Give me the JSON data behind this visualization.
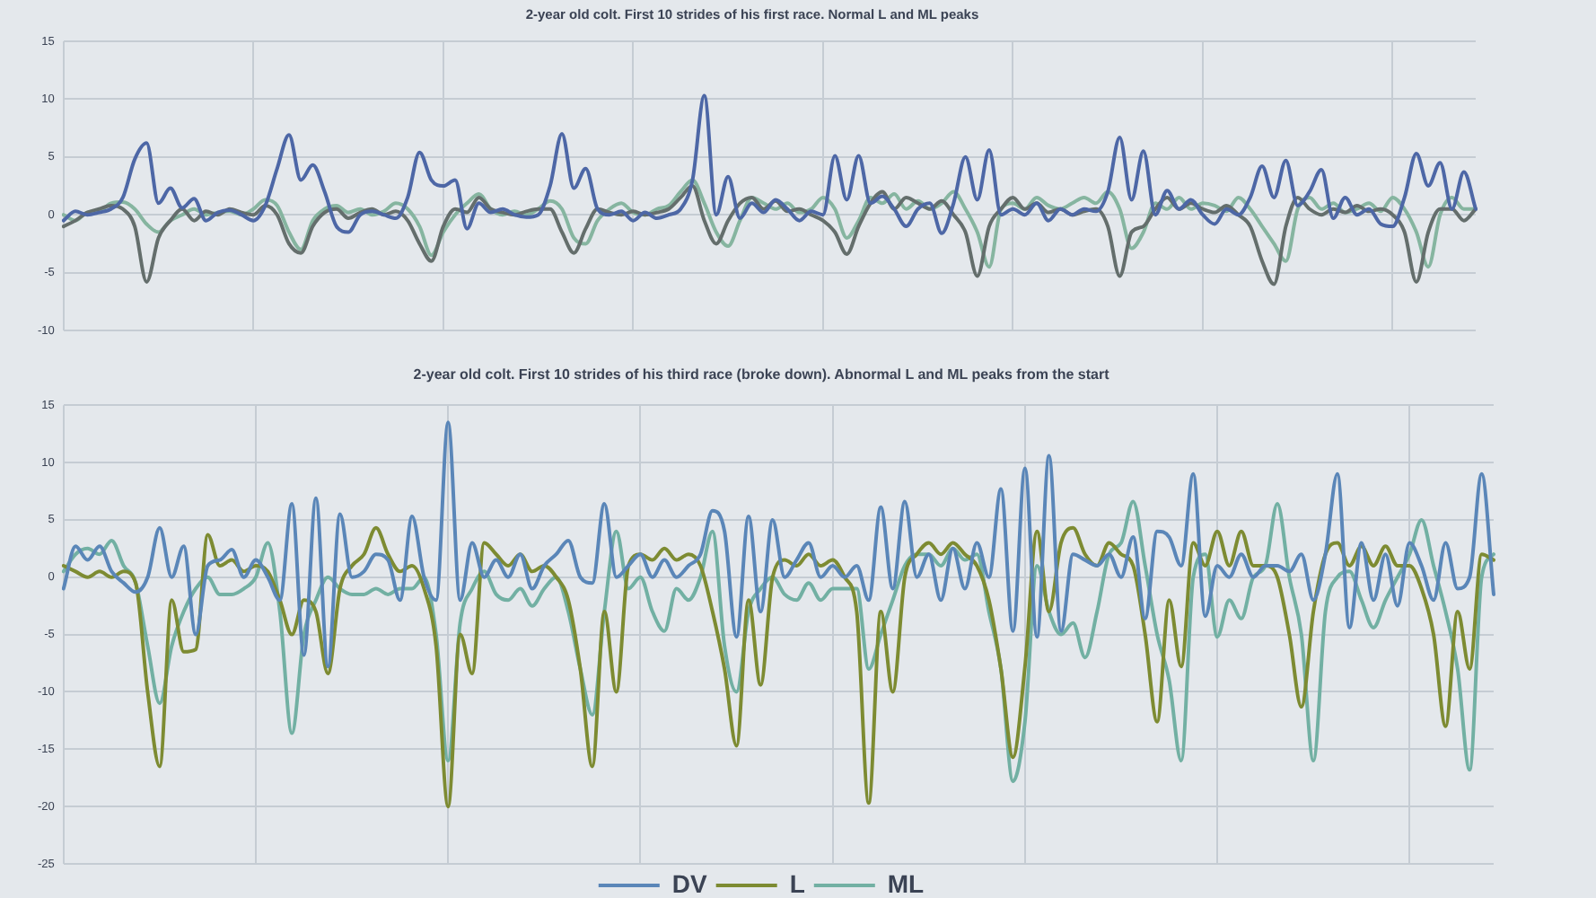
{
  "chart_data": [
    {
      "type": "line",
      "title": "2-year old colt. First 10 strides of his first race. Normal L and ML peaks",
      "categories": [
        null,
        null,
        null,
        null,
        null,
        null,
        null,
        null,
        null,
        null,
        null,
        null,
        null,
        null,
        null,
        null,
        null,
        null,
        null,
        null,
        null,
        null,
        null,
        null,
        null,
        null,
        null,
        null,
        null,
        null,
        null,
        null,
        null,
        null,
        null,
        null,
        null,
        null,
        null,
        null,
        null,
        null,
        null,
        null,
        null,
        null,
        null,
        null,
        null,
        null,
        null,
        null,
        null,
        null,
        null,
        null,
        null,
        null,
        null,
        null,
        null,
        null,
        null,
        null,
        null,
        null,
        null,
        null,
        null,
        null,
        null,
        null,
        null,
        null,
        null,
        null,
        null,
        null,
        null,
        null,
        null,
        null,
        null,
        null,
        null,
        null,
        null,
        null,
        null,
        null,
        null,
        null,
        null,
        null,
        null,
        null,
        null,
        null,
        null,
        null,
        null,
        null,
        null,
        null,
        null,
        null,
        null,
        null,
        null,
        null,
        null,
        null,
        null,
        null,
        null,
        null,
        null,
        null,
        null,
        null
      ],
      "series": [
        {
          "color": "#4d67a6",
          "values": [
            -0.5,
            0.3,
            0,
            0.2,
            0.5,
            1.5,
            4.8,
            6.2,
            1,
            2.3,
            0.6,
            1.4,
            -0.5,
            0.2,
            0.4,
            0,
            -0.5,
            0.8,
            4,
            6.9,
            3,
            4.3,
            2,
            -1,
            -1.5,
            0,
            0.3,
            0,
            -0.3,
            1.5,
            5.4,
            3,
            2.5,
            3,
            -1.2,
            1,
            0.2,
            0.5,
            0,
            -0.2,
            0,
            2.5,
            7,
            2.3,
            4,
            0.5,
            0,
            0.3,
            -0.5,
            0.2,
            -0.3,
            0,
            0.5,
            3,
            10.3,
            0,
            3.3,
            -0.3,
            1,
            0.2,
            1.3,
            0.5,
            -0.5,
            0.3,
            0,
            5.1,
            1.3,
            5.1,
            1,
            1.6,
            0.5,
            -1,
            0.5,
            1,
            -1.6,
            1,
            5,
            1.3,
            5.6,
            0,
            0.5,
            0,
            1,
            -0.5,
            0.5,
            0,
            0.5,
            0.3,
            2,
            6.7,
            1.3,
            5.5,
            0,
            2.1,
            0.5,
            1.3,
            0,
            -0.8,
            0.5,
            0,
            1.5,
            4.2,
            1.5,
            4.7,
            0.8,
            2,
            3.9,
            -0.3,
            1.5,
            0,
            0.5,
            -0.8,
            -1,
            1.5,
            5.3,
            2.5,
            4.5,
            0.5,
            3.7,
            0.5
          ]
        },
        {
          "color": "#646e6c",
          "values": [
            -1,
            -0.5,
            0.2,
            0.5,
            0.8,
            0.5,
            -1,
            -5.8,
            -2,
            -0.5,
            0.5,
            -0.5,
            0.3,
            0,
            0.5,
            0.2,
            0,
            0.8,
            0,
            -2.5,
            -3.3,
            -1,
            0.2,
            0.5,
            -0.3,
            0.2,
            0.5,
            0,
            0.3,
            -0.5,
            -2.5,
            -4,
            -1,
            0.5,
            0.2,
            1.5,
            0.5,
            0.2,
            0,
            0.3,
            0.5,
            0.5,
            -1.5,
            -3.3,
            -1.2,
            0.5,
            0.2,
            0,
            0.3,
            0,
            0.2,
            0.5,
            1.5,
            2.5,
            -0.5,
            -2.5,
            -0.5,
            1,
            1.5,
            0.5,
            1.2,
            0.3,
            0.5,
            0,
            -0.5,
            -1.5,
            -3.4,
            -1,
            1,
            2,
            0.5,
            1.5,
            1,
            0.5,
            1.2,
            0,
            -1.5,
            -5.3,
            -1,
            0.5,
            1.5,
            0.5,
            1,
            0.2,
            0.5,
            0,
            0.3,
            0.5,
            -1,
            -5.3,
            -1.5,
            -1,
            0.5,
            1.5,
            0.5,
            1,
            0.5,
            0.2,
            0.8,
            0,
            -1,
            -4,
            -6,
            -1,
            1.5,
            0.5,
            0,
            0.5,
            0.2,
            0.8,
            0.3,
            0.5,
            0,
            -1.5,
            -5.8,
            -1.5,
            0.5,
            0.5,
            -0.5,
            0.5
          ]
        },
        {
          "color": "#86b5a0",
          "values": [
            0,
            -0.5,
            0.2,
            0.3,
            1,
            1.1,
            0.5,
            -0.8,
            -1.5,
            -0.5,
            0,
            0.5,
            0,
            0.2,
            0.3,
            0,
            0.5,
            1.3,
            0.8,
            -1.5,
            -3,
            -0.5,
            0.5,
            0.8,
            0.2,
            0.5,
            0,
            0.3,
            1,
            0.5,
            -1,
            -3.5,
            -1.5,
            0,
            1,
            1.8,
            0.5,
            0,
            0.3,
            0,
            0.5,
            1.2,
            0.5,
            -2,
            -2.5,
            -0.5,
            0.5,
            1,
            0.2,
            0,
            0.5,
            0.8,
            2,
            3,
            1,
            -1.5,
            -2.7,
            -0.5,
            1.5,
            1,
            0.5,
            1,
            0.2,
            0.5,
            1.5,
            0.5,
            -2,
            -0.5,
            1.5,
            1,
            1.8,
            0.5,
            1.2,
            0.5,
            1,
            2,
            0.5,
            -1.5,
            -4.5,
            0.5,
            1,
            0.5,
            1.5,
            0.8,
            0.5,
            1,
            1.5,
            1,
            2,
            0.5,
            -2.9,
            -1.5,
            1,
            0.5,
            1.5,
            0.5,
            1,
            0.8,
            0.3,
            1.5,
            0.5,
            -1,
            -2.5,
            -4,
            0.5,
            1.5,
            0.5,
            1,
            0.2,
            0.5,
            1,
            0.3,
            1.5,
            0.5,
            -1.5,
            -4.5,
            0,
            1.5,
            0.5,
            0.5
          ]
        }
      ],
      "ylim": [
        -10,
        15
      ],
      "yticks": [
        -10,
        -5,
        0,
        5,
        10,
        15
      ],
      "grid": true,
      "legend": false,
      "tick_labels": "y",
      "marker": "none"
    },
    {
      "type": "line",
      "title": "2-year old colt. First 10 strides of his third race (broke down). Abnormal L and ML peaks from the start",
      "categories": [
        null,
        null,
        null,
        null,
        null,
        null,
        null,
        null,
        null,
        null,
        null,
        null,
        null,
        null,
        null,
        null,
        null,
        null,
        null,
        null,
        null,
        null,
        null,
        null,
        null,
        null,
        null,
        null,
        null,
        null,
        null,
        null,
        null,
        null,
        null,
        null,
        null,
        null,
        null,
        null,
        null,
        null,
        null,
        null,
        null,
        null,
        null,
        null,
        null,
        null,
        null,
        null,
        null,
        null,
        null,
        null,
        null,
        null,
        null,
        null,
        null,
        null,
        null,
        null,
        null,
        null,
        null,
        null,
        null,
        null,
        null,
        null,
        null,
        null,
        null,
        null,
        null,
        null,
        null,
        null,
        null,
        null,
        null,
        null,
        null,
        null,
        null,
        null,
        null,
        null,
        null,
        null,
        null,
        null,
        null,
        null,
        null,
        null,
        null,
        null,
        null,
        null,
        null,
        null,
        null,
        null,
        null,
        null,
        null,
        null,
        null,
        null,
        null,
        null,
        null,
        null,
        null,
        null,
        null,
        null
      ],
      "series": [
        {
          "name": "DV",
          "color": "#5a86b8",
          "values": [
            -1,
            2.7,
            1.5,
            2.7,
            0.5,
            -0.5,
            -1.3,
            0,
            4.3,
            0,
            2.7,
            -5,
            1,
            1.5,
            2.4,
            0,
            1.5,
            0,
            -2,
            6.4,
            -6.8,
            6.9,
            -7.8,
            5.5,
            0,
            0.5,
            2,
            1.5,
            -2,
            5.3,
            0,
            -2,
            13.5,
            -2,
            3,
            0,
            1.5,
            0,
            2,
            -1,
            1,
            2,
            3.2,
            0,
            -0.5,
            6.4,
            0,
            1,
            2,
            0,
            1.5,
            0,
            1,
            2,
            5.8,
            4,
            -5.2,
            5.3,
            -3,
            5,
            0,
            1.5,
            3,
            0,
            1,
            0,
            1,
            -2,
            6.1,
            -1,
            6.6,
            0,
            2,
            -2,
            2.5,
            -1,
            3,
            0,
            7.7,
            -4.7,
            9.5,
            -5.2,
            10.6,
            -4.7,
            2,
            1.5,
            1,
            2,
            0,
            3.5,
            -3.6,
            4,
            3.5,
            1,
            9,
            -3.4,
            1,
            0,
            2,
            0,
            1,
            1,
            0.5,
            2,
            -2,
            2,
            9,
            -4.4,
            3,
            -2,
            2,
            -2.5,
            3,
            1,
            -2,
            3,
            -1,
            0,
            9,
            -1.5
          ]
        },
        {
          "name": "L",
          "color": "#7d8b32",
          "values": [
            1,
            0.5,
            0,
            0.5,
            0,
            0.5,
            -0.5,
            -10,
            -16.5,
            -2,
            -6.5,
            -6.3,
            3.7,
            1,
            1.5,
            0.5,
            1,
            0.5,
            -2,
            -5,
            -2,
            -3,
            -8.4,
            -1,
            1,
            2,
            4.3,
            2,
            0.5,
            1,
            -1,
            -6,
            -20,
            -5,
            -8.4,
            3,
            2,
            1,
            2,
            0.5,
            1,
            0,
            -2,
            -8,
            -16.5,
            -3,
            -10,
            1,
            2,
            1.5,
            2.5,
            1.5,
            2,
            1,
            -3,
            -8,
            -14.7,
            -2,
            -9.4,
            0,
            1.5,
            1,
            2,
            1,
            1.5,
            0,
            -3,
            -19.7,
            -3,
            -10,
            0,
            2,
            3,
            2,
            3,
            2,
            1,
            -2,
            -8,
            -15.7,
            -7.8,
            4,
            -3,
            3,
            4.3,
            2,
            1,
            3,
            2,
            1,
            -5,
            -12.6,
            -2,
            -7.8,
            3,
            1,
            4,
            1,
            4,
            1,
            1,
            0,
            -5,
            -11.3,
            -3,
            2,
            3,
            1,
            2.7,
            1,
            2.7,
            1,
            1,
            -1,
            -5,
            -13,
            -3,
            -8,
            2,
            1.5
          ]
        },
        {
          "name": "ML",
          "color": "#72b0a3",
          "values": [
            0.5,
            2,
            2.5,
            2,
            3.2,
            1,
            -0.5,
            -6,
            -11,
            -6,
            -3,
            -1,
            0,
            -1.5,
            -1.5,
            -1,
            0,
            3,
            -3,
            -13.6,
            -5,
            -2,
            0,
            -1,
            -1.5,
            -1.5,
            -1,
            -1.5,
            -1,
            -1,
            0,
            -5,
            -16,
            -4,
            -1,
            0.5,
            -1.5,
            -2,
            -1,
            -2.5,
            -1,
            0,
            -3,
            -8,
            -12,
            -3,
            4,
            -1,
            0,
            -3,
            -4.7,
            -1,
            -2,
            0,
            4,
            -6,
            -10,
            -3,
            -1,
            0,
            -1.5,
            -2,
            -0.5,
            -2,
            -1,
            -1,
            -1,
            -8,
            -5,
            -2,
            1,
            2,
            2,
            1,
            2.5,
            1.5,
            2,
            -3,
            -8,
            -17.8,
            -12.6,
            1,
            -3,
            -5,
            -4,
            -7,
            -3,
            2,
            3,
            6.6,
            1,
            -5,
            -9,
            -16,
            0,
            2,
            -5.2,
            -2,
            -3.6,
            0,
            1,
            6.4,
            0,
            -5,
            -16,
            -3,
            0,
            0.5,
            -2,
            -4.4,
            -2,
            0,
            2,
            5,
            1,
            -3,
            -8,
            -16.8,
            0,
            2
          ]
        }
      ],
      "ylim": [
        -25,
        15
      ],
      "yticks": [
        -25,
        -20,
        -15,
        -10,
        -5,
        0,
        5,
        10,
        15
      ],
      "grid": true,
      "legend": "bottom",
      "tick_labels": "y",
      "marker": "none"
    }
  ]
}
